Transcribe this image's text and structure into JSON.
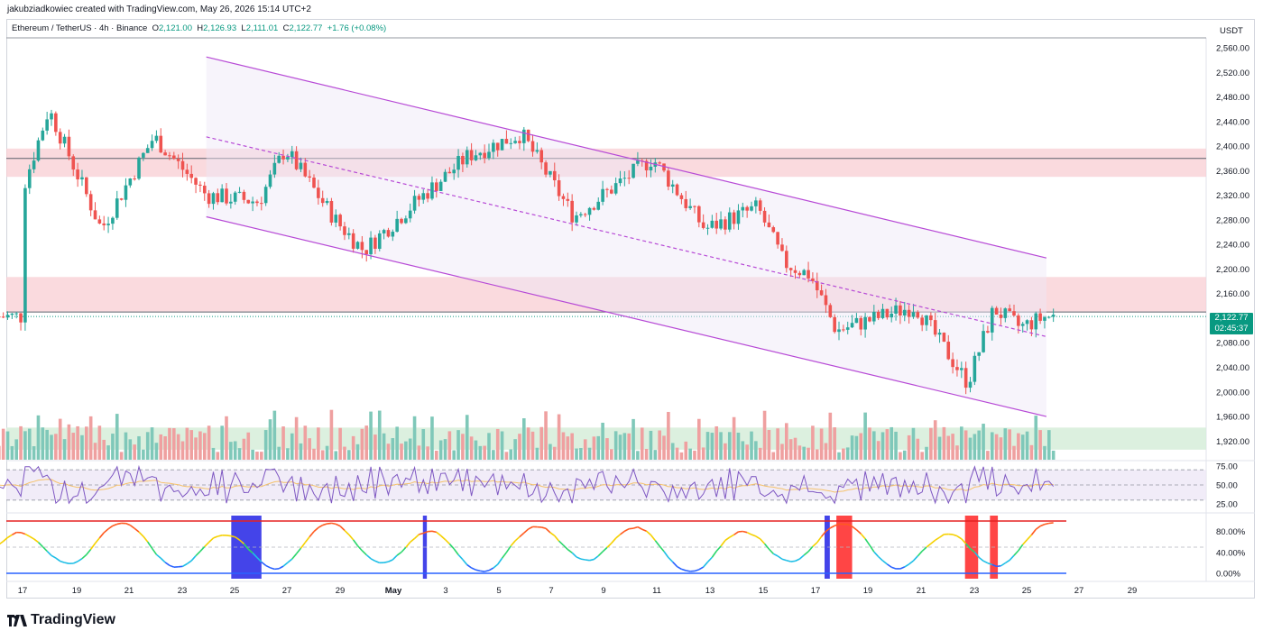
{
  "credit": "jakubziadkowiec created with TradingView.com, May 26, 2026 15:14 UTC+2",
  "legend": {
    "symbol": "Ethereum / TetherUS · 4h · Binance",
    "o_label": "O",
    "o_value": "2,121.00",
    "h_label": "H",
    "h_value": "2,126.93",
    "l_label": "L",
    "l_value": "2,111.01",
    "c_label": "C",
    "c_value": "2,122.77",
    "change": "+1.76 (+0.08%)"
  },
  "currency": "USDT",
  "last_price": "2,122.77",
  "countdown": "02:45:37",
  "brand": "TradingView",
  "colors": {
    "up": "#26a69a",
    "down": "#ef5350",
    "channel": "#b74ad6",
    "zone": "#f8cdd3",
    "volume_zone": "#d8eedb",
    "rsi_band": "#ede7f6",
    "rsi_line": "#7e57c2",
    "rsi_ma": "#f5c26b",
    "stoch_top": "#e52222",
    "stoch_bottom": "#2962ff",
    "stoch_block_low": "#3a3ae8",
    "stoch_block_high": "#ff3b3b"
  },
  "chart_data": {
    "type": "candlestick",
    "ylim": [
      1900,
      2575
    ],
    "y_ticks": [
      "2,560.00",
      "2,520.00",
      "2,480.00",
      "2,440.00",
      "2,400.00",
      "2,360.00",
      "2,320.00",
      "2,280.00",
      "2,240.00",
      "2,200.00",
      "2,160.00",
      "2,120.00",
      "2,080.00",
      "2,040.00",
      "2,000.00",
      "1,960.00",
      "1,920.00"
    ],
    "y_tick_values": [
      2560,
      2520,
      2480,
      2440,
      2400,
      2360,
      2320,
      2280,
      2240,
      2200,
      2160,
      2120,
      2080,
      2040,
      2000,
      1960,
      1920
    ],
    "x_ticks": [
      "17",
      "19",
      "21",
      "23",
      "25",
      "27",
      "29",
      "May",
      "3",
      "5",
      "7",
      "9",
      "11",
      "13",
      "15",
      "17",
      "19",
      "21",
      "23",
      "25",
      "27",
      "29"
    ],
    "horizontal_lines": [
      2380,
      2130
    ],
    "resistance_zones": [
      [
        2350,
        2396
      ],
      [
        2131,
        2187
      ]
    ],
    "channel": {
      "upper": [
        {
          "date": "Apr 24",
          "price": 2545
        },
        {
          "date": "May 26",
          "price": 2218
        }
      ],
      "middle": [
        {
          "date": "Apr 24",
          "price": 2415
        },
        {
          "date": "May 26",
          "price": 2090
        }
      ],
      "lower": [
        {
          "date": "Apr 24",
          "price": 2285
        },
        {
          "date": "May 26",
          "price": 1960
        }
      ]
    },
    "key_prices": [
      {
        "date": "Apr 17",
        "price": 2330
      },
      {
        "date": "Apr 18",
        "price": 2460
      },
      {
        "date": "Apr 20",
        "price": 2265
      },
      {
        "date": "Apr 22",
        "price": 2415
      },
      {
        "date": "Apr 24",
        "price": 2320
      },
      {
        "date": "Apr 26",
        "price": 2310
      },
      {
        "date": "Apr 27",
        "price": 2395
      },
      {
        "date": "Apr 29",
        "price": 2275
      },
      {
        "date": "Apr 30",
        "price": 2230
      },
      {
        "date": "May 2",
        "price": 2310
      },
      {
        "date": "May 4",
        "price": 2385
      },
      {
        "date": "May 6",
        "price": 2420
      },
      {
        "date": "May 8",
        "price": 2285
      },
      {
        "date": "May 11",
        "price": 2380
      },
      {
        "date": "May 13",
        "price": 2265
      },
      {
        "date": "May 15",
        "price": 2300
      },
      {
        "date": "May 16",
        "price": 2210
      },
      {
        "date": "May 17",
        "price": 2190
      },
      {
        "date": "May 18",
        "price": 2100
      },
      {
        "date": "May 21",
        "price": 2140
      },
      {
        "date": "May 23",
        "price": 2015
      },
      {
        "date": "May 24",
        "price": 2135
      },
      {
        "date": "May 25",
        "price": 2105
      },
      {
        "date": "May 26",
        "price": 2122.77
      }
    ],
    "rsi": {
      "ticks": [
        "75.00",
        "50.00",
        "25.00"
      ],
      "tick_values": [
        75,
        50,
        25
      ]
    },
    "stoch": {
      "ticks": [
        "80.00%",
        "40.00%",
        "0.00%"
      ],
      "tick_values": [
        80,
        40,
        0
      ]
    }
  }
}
